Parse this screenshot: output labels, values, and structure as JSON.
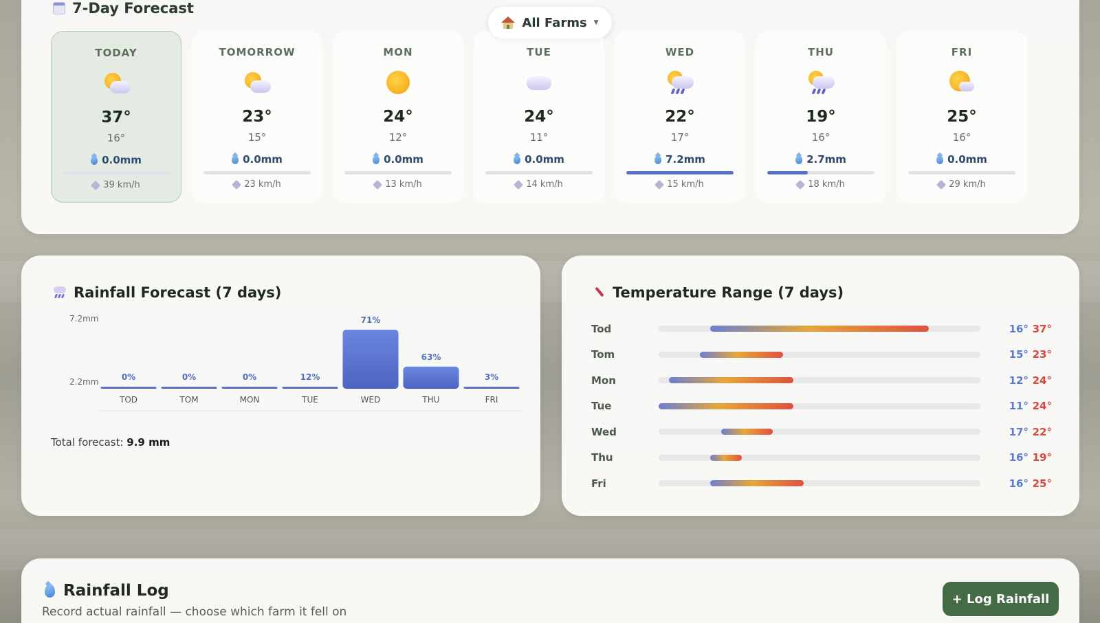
{
  "forecast": {
    "title": "7-Day Forecast",
    "farm_select": {
      "value": "All Farms"
    },
    "days": [
      {
        "label": "TODAY",
        "icon": "sun-behind-cloud",
        "hi": "37°",
        "lo": "16°",
        "rain": "0.0mm",
        "rain_mm": 0.0,
        "wind": "39 km/h"
      },
      {
        "label": "TOMORROW",
        "icon": "sun-behind-cloud",
        "hi": "23°",
        "lo": "15°",
        "rain": "0.0mm",
        "rain_mm": 0.0,
        "wind": "23 km/h"
      },
      {
        "label": "MON",
        "icon": "sun",
        "hi": "24°",
        "lo": "12°",
        "rain": "0.0mm",
        "rain_mm": 0.0,
        "wind": "13 km/h"
      },
      {
        "label": "TUE",
        "icon": "cloud",
        "hi": "24°",
        "lo": "11°",
        "rain": "0.0mm",
        "rain_mm": 0.0,
        "wind": "14 km/h"
      },
      {
        "label": "WED",
        "icon": "sun-behind-rain-cloud",
        "hi": "22°",
        "lo": "17°",
        "rain": "7.2mm",
        "rain_mm": 7.2,
        "wind": "15 km/h"
      },
      {
        "label": "THU",
        "icon": "sun-behind-rain-cloud",
        "hi": "19°",
        "lo": "16°",
        "rain": "2.7mm",
        "rain_mm": 2.7,
        "wind": "18 km/h"
      },
      {
        "label": "FRI",
        "icon": "sun-behind-cloud",
        "hi": "25°",
        "lo": "16°",
        "rain": "0.0mm",
        "rain_mm": 0.0,
        "wind": "29 km/h"
      }
    ]
  },
  "rainfall_chart": {
    "title": "Rainfall Forecast (7 days)",
    "total_label": "Total forecast:",
    "total_value": "9.9 mm"
  },
  "chart_data": {
    "type": "bar",
    "title": "Rainfall Forecast (7 days)",
    "categories": [
      "TOD",
      "TOM",
      "MON",
      "TUE",
      "WED",
      "THU",
      "FRI"
    ],
    "values": [
      0.0,
      0.0,
      0.0,
      0.0,
      7.2,
      2.7,
      0.0
    ],
    "probability_labels": [
      "0%",
      "0%",
      "0%",
      "12%",
      "71%",
      "63%",
      "3%"
    ],
    "y_tick_labels": [
      "7.2mm",
      "2.2mm"
    ],
    "y_ticks": [
      7.2,
      2.2
    ],
    "ylim": [
      0,
      7.2
    ]
  },
  "temperature_range": {
    "title": "Temperature Range (7 days)",
    "scale": [
      11,
      42
    ],
    "rows": [
      {
        "label": "Tod",
        "lo": 16,
        "hi": 37,
        "lo_text": "16°",
        "hi_text": "37°"
      },
      {
        "label": "Tom",
        "lo": 15,
        "hi": 23,
        "lo_text": "15°",
        "hi_text": "23°"
      },
      {
        "label": "Mon",
        "lo": 12,
        "hi": 24,
        "lo_text": "12°",
        "hi_text": "24°"
      },
      {
        "label": "Tue",
        "lo": 11,
        "hi": 24,
        "lo_text": "11°",
        "hi_text": "24°"
      },
      {
        "label": "Wed",
        "lo": 17,
        "hi": 22,
        "lo_text": "17°",
        "hi_text": "22°"
      },
      {
        "label": "Thu",
        "lo": 16,
        "hi": 19,
        "lo_text": "16°",
        "hi_text": "19°"
      },
      {
        "label": "Fri",
        "lo": 16,
        "hi": 25,
        "lo_text": "16°",
        "hi_text": "25°"
      }
    ]
  },
  "rainfall_log": {
    "title": "Rainfall Log",
    "subtitle": "Record actual rainfall — choose which farm it fell on",
    "button_label": "+ Log Rainfall"
  },
  "colors": {
    "accent_green": "#456b45",
    "rain_blue": "#5871c6",
    "temp_low": "#5a7bd1",
    "temp_high": "#d8473c"
  }
}
